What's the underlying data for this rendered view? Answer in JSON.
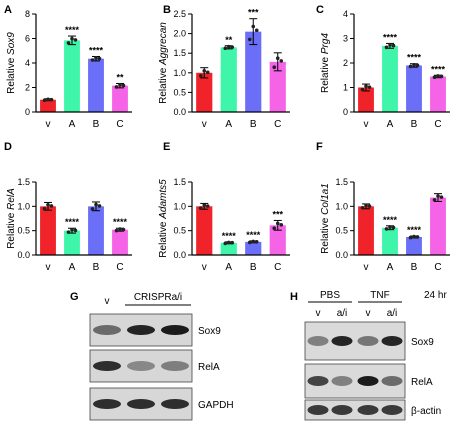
{
  "colors": {
    "v": "#f0232a",
    "A": "#3ff5a9",
    "B": "#6b6ef7",
    "C": "#f564e6"
  },
  "chart_data": [
    {
      "type": "bar",
      "panel": "A",
      "ylabel_prefix": "Relative ",
      "ylabel_gene": "Sox9",
      "categories": [
        "v",
        "A",
        "B",
        "C"
      ],
      "values": [
        1.0,
        5.85,
        4.35,
        2.15
      ],
      "errors": [
        0.08,
        0.35,
        0.18,
        0.18
      ],
      "significance": [
        "",
        "****",
        "****",
        "**"
      ],
      "ylim": [
        0,
        8
      ],
      "yticks": [
        0,
        2,
        4,
        6,
        8
      ],
      "ytick_labels": [
        "0",
        "2",
        "4",
        "6",
        "8"
      ]
    },
    {
      "type": "bar",
      "panel": "B",
      "ylabel_prefix": "Relative ",
      "ylabel_gene": "Aggrecan",
      "categories": [
        "v",
        "A",
        "B",
        "C"
      ],
      "values": [
        1.0,
        1.65,
        2.05,
        1.28
      ],
      "errors": [
        0.13,
        0.04,
        0.33,
        0.23
      ],
      "significance": [
        "",
        "**",
        "***",
        ""
      ],
      "ylim": [
        0,
        2.5
      ],
      "yticks": [
        0,
        0.5,
        1.0,
        1.5,
        2.0,
        2.5
      ],
      "ytick_labels": [
        "0.0",
        "0.5",
        "1.0",
        "1.5",
        "2.0",
        "2.5"
      ]
    },
    {
      "type": "bar",
      "panel": "C",
      "ylabel_prefix": "Relative ",
      "ylabel_gene": "Prg4",
      "categories": [
        "v",
        "A",
        "B",
        "C"
      ],
      "values": [
        1.0,
        2.7,
        1.9,
        1.45
      ],
      "errors": [
        0.14,
        0.1,
        0.07,
        0.05
      ],
      "significance": [
        "",
        "****",
        "****",
        "****"
      ],
      "ylim": [
        0,
        4
      ],
      "yticks": [
        0,
        1,
        2,
        3,
        4
      ],
      "ytick_labels": [
        "0",
        "1",
        "2",
        "3",
        "4"
      ]
    },
    {
      "type": "bar",
      "panel": "D",
      "ylabel_prefix": "Relative ",
      "ylabel_gene": "RelA",
      "categories": [
        "v",
        "A",
        "B",
        "C"
      ],
      "values": [
        1.0,
        0.5,
        1.0,
        0.52
      ],
      "errors": [
        0.08,
        0.05,
        0.09,
        0.03
      ],
      "significance": [
        "",
        "****",
        "",
        "****"
      ],
      "ylim": [
        0,
        1.5
      ],
      "yticks": [
        0,
        0.5,
        1.0,
        1.5
      ],
      "ytick_labels": [
        "0.0",
        "0.5",
        "1.0",
        "1.5"
      ]
    },
    {
      "type": "bar",
      "panel": "E",
      "ylabel_prefix": "Relative ",
      "ylabel_gene": "Adamts5",
      "categories": [
        "v",
        "A",
        "B",
        "C"
      ],
      "values": [
        1.0,
        0.25,
        0.27,
        0.61
      ],
      "errors": [
        0.06,
        0.02,
        0.02,
        0.1
      ],
      "significance": [
        "",
        "****",
        "****",
        "***"
      ],
      "ylim": [
        0,
        1.5
      ],
      "yticks": [
        0,
        0.5,
        1.0,
        1.5
      ],
      "ytick_labels": [
        "0.0",
        "0.5",
        "1.0",
        "1.5"
      ]
    },
    {
      "type": "bar",
      "panel": "F",
      "ylabel_prefix": "Relative ",
      "ylabel_gene": "Col1a1",
      "categories": [
        "v",
        "A",
        "B",
        "C"
      ],
      "values": [
        1.0,
        0.56,
        0.37,
        1.18
      ],
      "errors": [
        0.05,
        0.04,
        0.02,
        0.08
      ],
      "significance": [
        "",
        "****",
        "****",
        ""
      ],
      "ylim": [
        0,
        1.5
      ],
      "yticks": [
        0,
        0.5,
        1.0,
        1.5
      ],
      "ytick_labels": [
        "0.0",
        "0.5",
        "1.0",
        "1.5"
      ]
    }
  ],
  "blot_g": {
    "letter": "G",
    "lane_label_v": "v",
    "group_label": "CRISPRa/i",
    "bands": [
      "Sox9",
      "RelA",
      "GAPDH"
    ],
    "intensity": [
      [
        0.55,
        0.9,
        0.95
      ],
      [
        0.85,
        0.4,
        0.45
      ],
      [
        0.85,
        0.85,
        0.85
      ]
    ]
  },
  "blot_h": {
    "letter": "H",
    "group_labels": [
      "PBS",
      "TNF"
    ],
    "time_label": "24 hr",
    "lane_labels": [
      "v",
      "a/i",
      "v",
      "a/i"
    ],
    "bands": [
      "Sox9",
      "RelA",
      "β-actin"
    ],
    "intensity": [
      [
        0.45,
        0.9,
        0.5,
        0.9
      ],
      [
        0.75,
        0.45,
        0.95,
        0.55
      ],
      [
        0.8,
        0.8,
        0.8,
        0.8
      ]
    ]
  }
}
